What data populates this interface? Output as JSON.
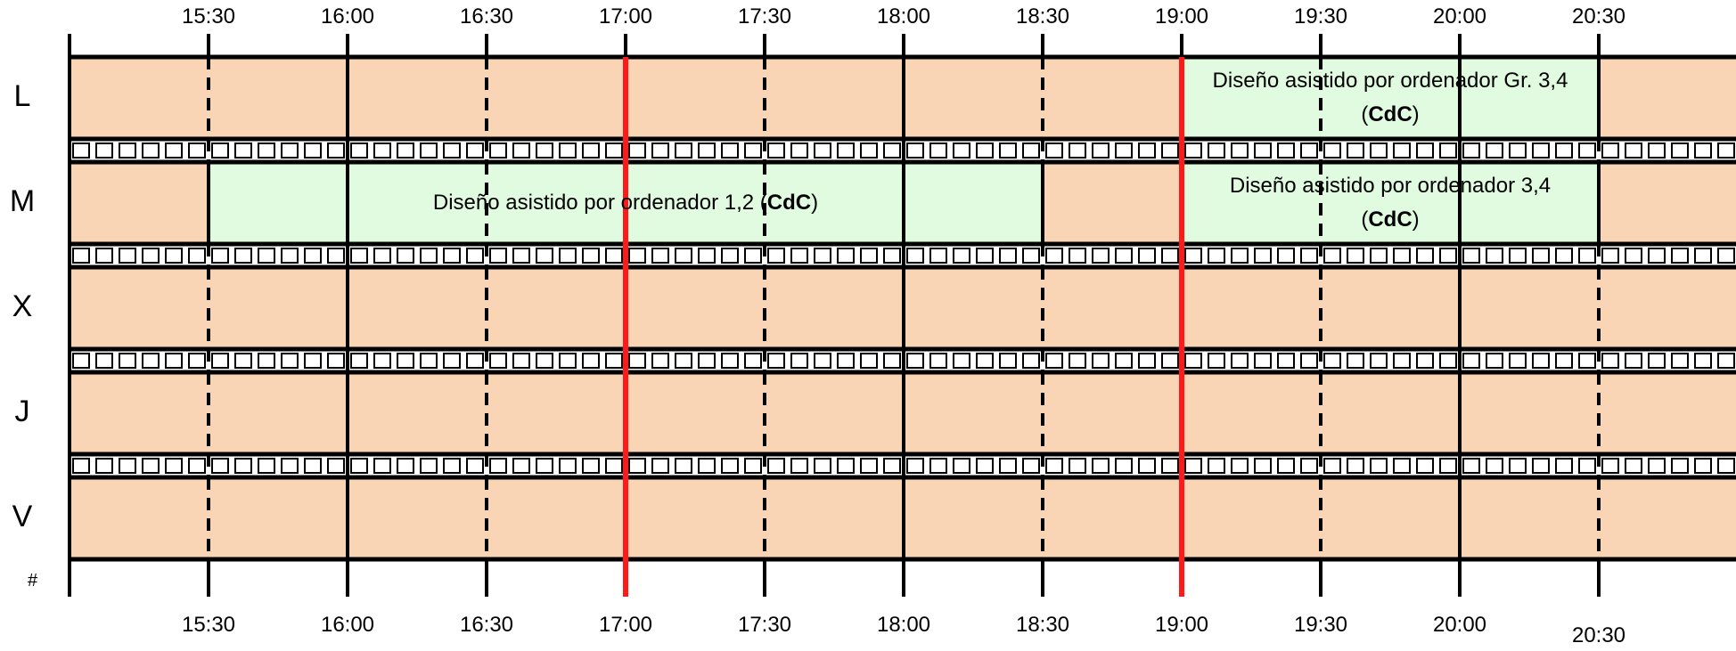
{
  "times_top": [
    "15:30",
    "16:00",
    "16:30",
    "17:00",
    "17:30",
    "18:00",
    "18:30",
    "19:00",
    "19:30",
    "20:00",
    "20:30"
  ],
  "times_bottom": [
    "15:30",
    "16:00",
    "16:30",
    "17:00",
    "17:30",
    "18:00",
    "18:30",
    "19:00",
    "19:30",
    "20:00",
    "20:30"
  ],
  "days": [
    "L",
    "M",
    "X",
    "J",
    "V"
  ],
  "footer_mark": "#",
  "colors": {
    "free": "#fad5b5",
    "event": "#e0fbe0",
    "line": "#000000",
    "highlight": "#ff1a1a"
  },
  "events": [
    {
      "day": "L",
      "start": "19:00",
      "end": "20:30",
      "line1": "Diseño asistido por ordenador Gr. 3,4",
      "line2_open": "(",
      "line2_bold": "CdC",
      "line2_close": ")"
    },
    {
      "day": "M",
      "start": "15:30",
      "end": "18:30",
      "line1": "Diseño asistido por ordenador 1,2 (",
      "line1_bold": "CdC",
      "line1_close": ")"
    },
    {
      "day": "M",
      "start": "19:00",
      "end": "20:30",
      "line1": "Diseño asistido por ordenador 3,4",
      "line2_open": "(",
      "line2_bold": "CdC",
      "line2_close": ")"
    }
  ],
  "highlight_times": [
    "17:00",
    "19:00"
  ]
}
